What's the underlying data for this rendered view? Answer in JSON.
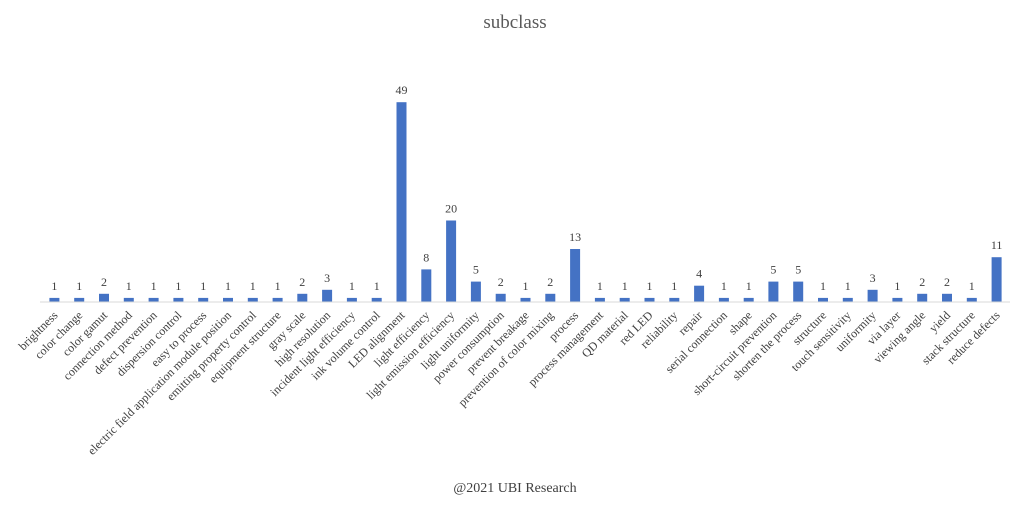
{
  "chart_data": {
    "type": "bar",
    "title": "subclass",
    "xlabel": "",
    "ylabel": "",
    "ylim": [
      0,
      52
    ],
    "grid": false,
    "legend": "none",
    "bar_color": "#4472C4",
    "categories": [
      "brightness",
      "color change",
      "color gamut",
      "connection method",
      "defect prevention",
      "dispersion control",
      "easy to process",
      "electric field application module position",
      "emitting property control",
      "equipment structure",
      "gray scale",
      "high resolution",
      "incident light efficiency",
      "ink volume control",
      "LED alignment",
      "light efficiency",
      "light emission efficiency",
      "light uniformity",
      "power consumption",
      "prevent breakage",
      "prevention of color mixing",
      "process",
      "process management",
      "QD material",
      "red LED",
      "reliability",
      "repair",
      "serial connection",
      "shape",
      "short-circuit prevention",
      "shorten the process",
      "structure",
      "touch sensitivity",
      "uniformity",
      "via layer",
      "viewing angle",
      "yield",
      "stack structure",
      "reduce defects"
    ],
    "values": [
      1,
      1,
      2,
      1,
      1,
      1,
      1,
      1,
      1,
      1,
      2,
      3,
      1,
      1,
      49,
      8,
      20,
      5,
      2,
      1,
      2,
      13,
      1,
      1,
      1,
      1,
      4,
      1,
      1,
      5,
      5,
      1,
      1,
      3,
      1,
      2,
      2,
      1,
      11
    ]
  },
  "footer": "@2021 UBI Research"
}
